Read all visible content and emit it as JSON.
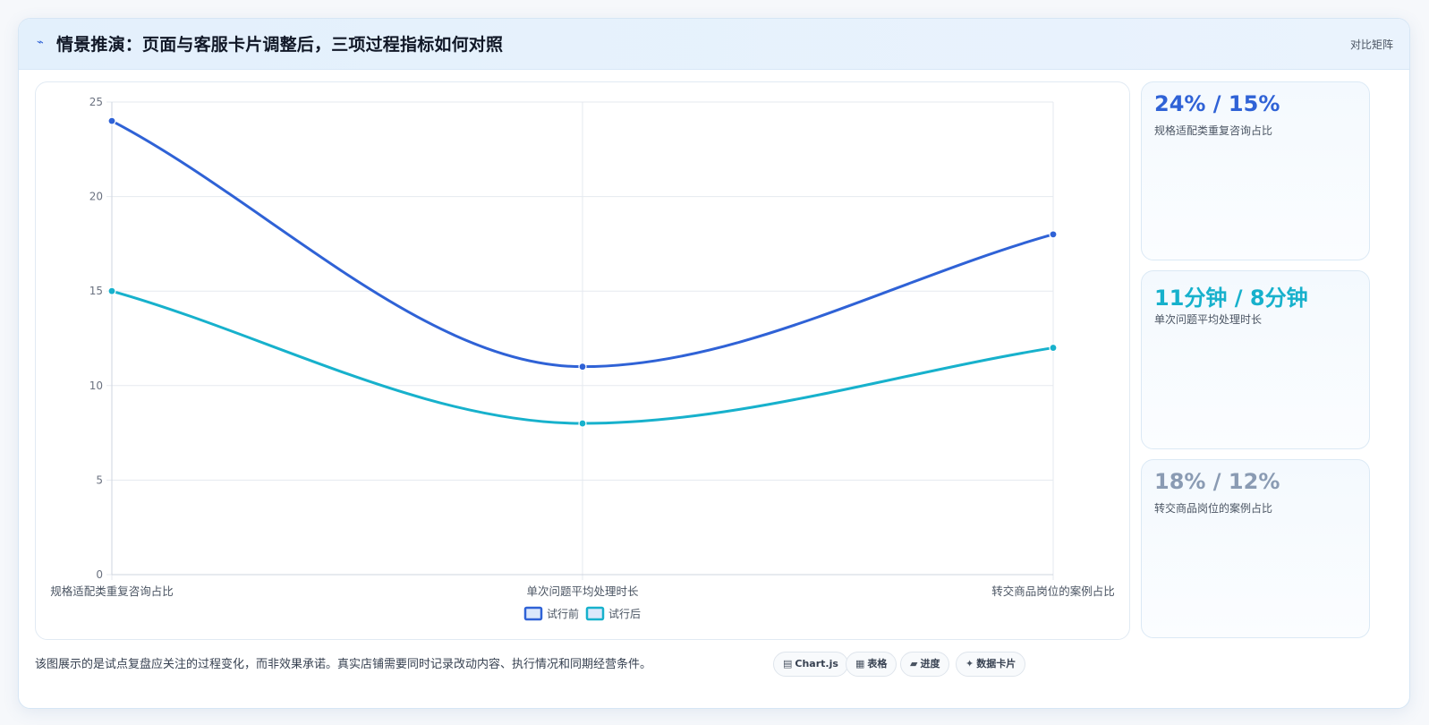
{
  "header": {
    "icon": "sparkle-icon",
    "title": "情景推演：页面与客服卡片调整后，三项过程指标如何对照",
    "right_label": "对比矩阵"
  },
  "chart_data": {
    "type": "line",
    "categories": [
      "规格适配类重复咨询占比",
      "单次问题平均处理时长",
      "转交商品岗位的案例占比"
    ],
    "series": [
      {
        "name": "试行前",
        "values": [
          24,
          11,
          18
        ],
        "color": "#2f62d6"
      },
      {
        "name": "试行后",
        "values": [
          15,
          8,
          12
        ],
        "color": "#17b1cc"
      }
    ],
    "ylim": [
      0,
      25
    ],
    "yticks": [
      0,
      5,
      10,
      15,
      20,
      25
    ],
    "grid": true,
    "legend_position": "bottom"
  },
  "cards": [
    {
      "value": "24% / 15%",
      "label": "规格适配类重复咨询占比",
      "color": "#2f62d6"
    },
    {
      "value": "11分钟 / 8分钟",
      "label": "单次问题平均处理时长",
      "color": "#17b1cc"
    },
    {
      "value": "18% / 12%",
      "label": "转交商品岗位的案例占比",
      "color": "#8a9bb3"
    }
  ],
  "footer": {
    "note": "该图展示的是试点复盘应关注的过程变化，而非效果承诺。真实店铺需要同时记录改动内容、执行情况和同期经营条件。",
    "pills": [
      {
        "icon": "▤",
        "label": "Chart.js"
      },
      {
        "icon": "▦",
        "label": "表格"
      },
      {
        "icon": "▰",
        "label": "进度"
      },
      {
        "icon": "✦",
        "label": "数据卡片"
      }
    ]
  }
}
